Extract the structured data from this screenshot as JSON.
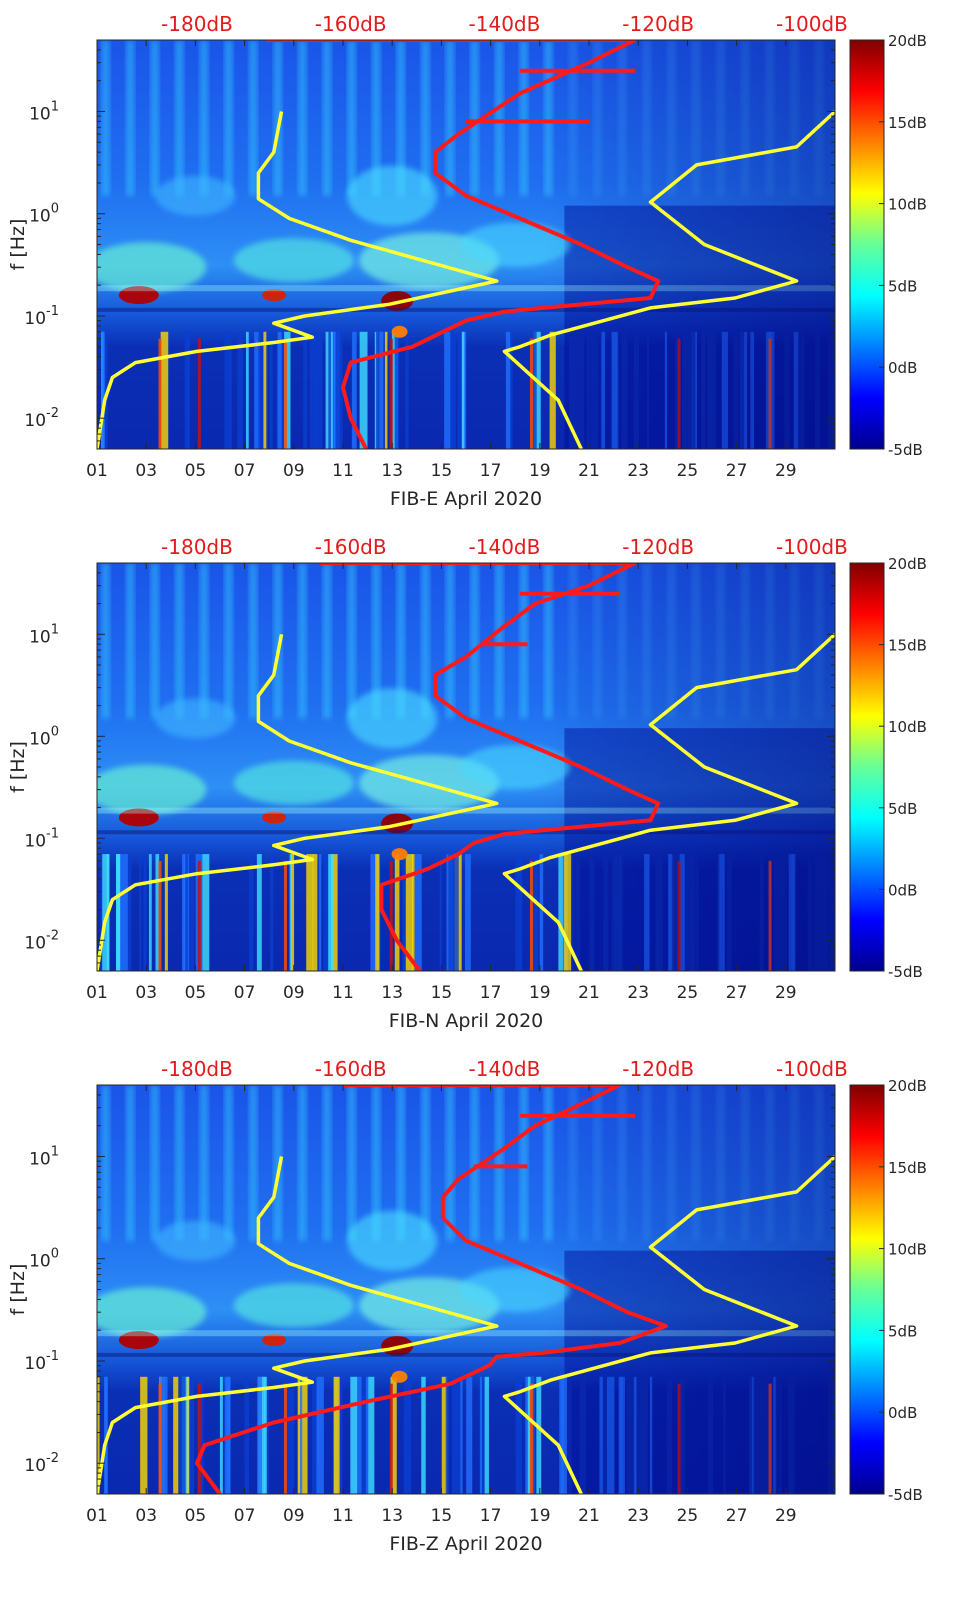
{
  "figure": {
    "colors": {
      "pink_line": "#ff1a1a",
      "yellow_line": "#ffff33",
      "top_axis_text": "#e41a1c"
    }
  },
  "chart_data": [
    {
      "type": "heatmap",
      "xlabel": "FIB-E April 2020",
      "ylabel": "f [Hz]",
      "x_tick_labels": [
        "01",
        "03",
        "05",
        "07",
        "09",
        "11",
        "13",
        "15",
        "17",
        "19",
        "21",
        "23",
        "25",
        "27",
        "29"
      ],
      "x_tick_values": [
        1,
        3,
        5,
        7,
        9,
        11,
        13,
        15,
        17,
        19,
        21,
        23,
        25,
        27,
        29
      ],
      "xlim": [
        1,
        31
      ],
      "y_scale": "log",
      "y_tick_values": [
        0.01,
        0.1,
        1,
        10
      ],
      "y_tick_labels": [
        {
          "base": "10",
          "exp": "-2"
        },
        {
          "base": "10",
          "exp": "-1"
        },
        {
          "base": "10",
          "exp": "0"
        },
        {
          "base": "10",
          "exp": "1"
        }
      ],
      "ylim": [
        0.005,
        50
      ],
      "top_axis_labels": [
        "-180dB",
        "-160dB",
        "-140dB",
        "-120dB",
        "-100dB"
      ],
      "top_axis_values": [
        -180,
        -160,
        -140,
        -120,
        -100
      ],
      "top_axis_lim": [
        -193,
        -97
      ],
      "colorbar": {
        "labels": [
          "20dB",
          "15dB",
          "10dB",
          "5dB",
          "0dB",
          "-5dB"
        ],
        "values": [
          20,
          15,
          10,
          5,
          0,
          -5
        ],
        "range": [
          -5,
          20
        ],
        "colormap": "jet"
      },
      "series": [
        {
          "color": "yellow",
          "points_db_hz": [
            [
              -193,
              0.005
            ],
            [
              -192,
              0.015
            ],
            [
              -191,
              0.025
            ],
            [
              -188,
              0.035
            ],
            [
              -180,
              0.045
            ],
            [
              -170,
              0.055
            ],
            [
              -165,
              0.062
            ],
            [
              -170,
              0.085
            ],
            [
              -166,
              0.1
            ],
            [
              -155,
              0.13
            ],
            [
              -141,
              0.22
            ],
            [
              -160,
              0.55
            ],
            [
              -168,
              0.9
            ],
            [
              -172,
              1.4
            ],
            [
              -172,
              2.5
            ],
            [
              -170,
              4
            ],
            [
              -169,
              10
            ]
          ]
        },
        {
          "color": "yellow",
          "points_db_hz": [
            [
              -97,
              10
            ],
            [
              -102,
              4.5
            ],
            [
              -115,
              3
            ],
            [
              -121,
              1.3
            ],
            [
              -114,
              0.5
            ],
            [
              -102,
              0.22
            ],
            [
              -110,
              0.15
            ],
            [
              -121,
              0.12
            ],
            [
              -134,
              0.065
            ],
            [
              -138,
              0.05
            ],
            [
              -140,
              0.045
            ],
            [
              -133,
              0.015
            ],
            [
              -130,
              0.005
            ]
          ]
        },
        {
          "color": "red",
          "points_db_hz": [
            [
              -158,
              0.005
            ],
            [
              -160,
              0.01
            ],
            [
              -161,
              0.02
            ],
            [
              -160,
              0.035
            ],
            [
              -152,
              0.05
            ],
            [
              -148,
              0.07
            ],
            [
              -145,
              0.09
            ],
            [
              -140,
              0.11
            ],
            [
              -135,
              0.12
            ],
            [
              -121,
              0.15
            ],
            [
              -120,
              0.22
            ],
            [
              -124,
              0.3
            ],
            [
              -130,
              0.5
            ],
            [
              -138,
              0.9
            ],
            [
              -145,
              1.5
            ],
            [
              -149,
              2.5
            ],
            [
              -149,
              4
            ],
            [
              -146,
              6
            ],
            [
              -138,
              15
            ],
            [
              -129,
              30
            ],
            [
              -123,
              50
            ]
          ]
        },
        {
          "color": "red",
          "points_db_hz": [
            [
              -145,
              8
            ],
            [
              -129,
              8
            ]
          ]
        },
        {
          "color": "red",
          "points_db_hz": [
            [
              -138,
              25
            ],
            [
              -123,
              25
            ]
          ]
        },
        {
          "color": "red",
          "points_db_hz": [
            [
              -171,
              50
            ],
            [
              -123,
              50
            ]
          ]
        }
      ]
    },
    {
      "type": "heatmap",
      "xlabel": "FIB-N April 2020",
      "ylabel": "f [Hz]",
      "x_tick_labels": [
        "01",
        "03",
        "05",
        "07",
        "09",
        "11",
        "13",
        "15",
        "17",
        "19",
        "21",
        "23",
        "25",
        "27",
        "29"
      ],
      "x_tick_values": [
        1,
        3,
        5,
        7,
        9,
        11,
        13,
        15,
        17,
        19,
        21,
        23,
        25,
        27,
        29
      ],
      "xlim": [
        1,
        31
      ],
      "y_scale": "log",
      "y_tick_values": [
        0.01,
        0.1,
        1,
        10
      ],
      "y_tick_labels": [
        {
          "base": "10",
          "exp": "-2"
        },
        {
          "base": "10",
          "exp": "-1"
        },
        {
          "base": "10",
          "exp": "0"
        },
        {
          "base": "10",
          "exp": "1"
        }
      ],
      "ylim": [
        0.005,
        50
      ],
      "top_axis_labels": [
        "-180dB",
        "-160dB",
        "-140dB",
        "-120dB",
        "-100dB"
      ],
      "top_axis_values": [
        -180,
        -160,
        -140,
        -120,
        -100
      ],
      "top_axis_lim": [
        -193,
        -97
      ],
      "colorbar": {
        "labels": [
          "20dB",
          "15dB",
          "10dB",
          "5dB",
          "0dB",
          "-5dB"
        ],
        "values": [
          20,
          15,
          10,
          5,
          0,
          -5
        ],
        "range": [
          -5,
          20
        ],
        "colormap": "jet"
      },
      "series": [
        {
          "color": "yellow",
          "points_db_hz": [
            [
              -193,
              0.005
            ],
            [
              -192,
              0.015
            ],
            [
              -191,
              0.025
            ],
            [
              -188,
              0.035
            ],
            [
              -180,
              0.045
            ],
            [
              -170,
              0.055
            ],
            [
              -165,
              0.062
            ],
            [
              -170,
              0.085
            ],
            [
              -166,
              0.1
            ],
            [
              -155,
              0.13
            ],
            [
              -141,
              0.22
            ],
            [
              -160,
              0.55
            ],
            [
              -168,
              0.9
            ],
            [
              -172,
              1.4
            ],
            [
              -172,
              2.5
            ],
            [
              -170,
              4
            ],
            [
              -169,
              10
            ]
          ]
        },
        {
          "color": "yellow",
          "points_db_hz": [
            [
              -97,
              10
            ],
            [
              -102,
              4.5
            ],
            [
              -115,
              3
            ],
            [
              -121,
              1.3
            ],
            [
              -114,
              0.5
            ],
            [
              -102,
              0.22
            ],
            [
              -110,
              0.15
            ],
            [
              -121,
              0.12
            ],
            [
              -134,
              0.065
            ],
            [
              -138,
              0.05
            ],
            [
              -140,
              0.045
            ],
            [
              -133,
              0.015
            ],
            [
              -130,
              0.005
            ]
          ]
        },
        {
          "color": "red",
          "points_db_hz": [
            [
              -151,
              0.005
            ],
            [
              -154,
              0.01
            ],
            [
              -156,
              0.02
            ],
            [
              -156,
              0.035
            ],
            [
              -150,
              0.05
            ],
            [
              -146,
              0.07
            ],
            [
              -144,
              0.09
            ],
            [
              -140,
              0.11
            ],
            [
              -135,
              0.12
            ],
            [
              -121,
              0.15
            ],
            [
              -120,
              0.22
            ],
            [
              -124,
              0.3
            ],
            [
              -130,
              0.5
            ],
            [
              -138,
              0.9
            ],
            [
              -145,
              1.5
            ],
            [
              -149,
              2.5
            ],
            [
              -149,
              4
            ],
            [
              -145,
              6
            ],
            [
              -140,
              12
            ],
            [
              -136,
              20
            ],
            [
              -129,
              30
            ],
            [
              -123,
              50
            ]
          ]
        },
        {
          "color": "red",
          "points_db_hz": [
            [
              -143,
              8
            ],
            [
              -137,
              8
            ]
          ]
        },
        {
          "color": "red",
          "points_db_hz": [
            [
              -138,
              25
            ],
            [
              -125,
              25
            ]
          ]
        },
        {
          "color": "red",
          "points_db_hz": [
            [
              -164,
              50
            ],
            [
              -123,
              50
            ]
          ]
        }
      ]
    },
    {
      "type": "heatmap",
      "xlabel": "FIB-Z April 2020",
      "ylabel": "f [Hz]",
      "x_tick_labels": [
        "01",
        "03",
        "05",
        "07",
        "09",
        "11",
        "13",
        "15",
        "17",
        "19",
        "21",
        "23",
        "25",
        "27",
        "29"
      ],
      "x_tick_values": [
        1,
        3,
        5,
        7,
        9,
        11,
        13,
        15,
        17,
        19,
        21,
        23,
        25,
        27,
        29
      ],
      "xlim": [
        1,
        31
      ],
      "y_scale": "log",
      "y_tick_values": [
        0.01,
        0.1,
        1,
        10
      ],
      "y_tick_labels": [
        {
          "base": "10",
          "exp": "-2"
        },
        {
          "base": "10",
          "exp": "-1"
        },
        {
          "base": "10",
          "exp": "0"
        },
        {
          "base": "10",
          "exp": "1"
        }
      ],
      "ylim": [
        0.005,
        50
      ],
      "top_axis_labels": [
        "-180dB",
        "-160dB",
        "-140dB",
        "-120dB",
        "-100dB"
      ],
      "top_axis_values": [
        -180,
        -160,
        -140,
        -120,
        -100
      ],
      "top_axis_lim": [
        -193,
        -97
      ],
      "colorbar": {
        "labels": [
          "20dB",
          "15dB",
          "10dB",
          "5dB",
          "0dB",
          "-5dB"
        ],
        "values": [
          20,
          15,
          10,
          5,
          0,
          -5
        ],
        "range": [
          -5,
          20
        ],
        "colormap": "jet"
      },
      "series": [
        {
          "color": "yellow",
          "points_db_hz": [
            [
              -193,
              0.005
            ],
            [
              -192,
              0.015
            ],
            [
              -191,
              0.025
            ],
            [
              -188,
              0.035
            ],
            [
              -180,
              0.045
            ],
            [
              -170,
              0.055
            ],
            [
              -165,
              0.062
            ],
            [
              -170,
              0.085
            ],
            [
              -166,
              0.1
            ],
            [
              -155,
              0.13
            ],
            [
              -141,
              0.22
            ],
            [
              -160,
              0.55
            ],
            [
              -168,
              0.9
            ],
            [
              -172,
              1.4
            ],
            [
              -172,
              2.5
            ],
            [
              -170,
              4
            ],
            [
              -169,
              10
            ]
          ]
        },
        {
          "color": "yellow",
          "points_db_hz": [
            [
              -97,
              10
            ],
            [
              -102,
              4.5
            ],
            [
              -115,
              3
            ],
            [
              -121,
              1.3
            ],
            [
              -114,
              0.5
            ],
            [
              -102,
              0.22
            ],
            [
              -110,
              0.15
            ],
            [
              -121,
              0.12
            ],
            [
              -134,
              0.065
            ],
            [
              -138,
              0.05
            ],
            [
              -140,
              0.045
            ],
            [
              -133,
              0.015
            ],
            [
              -130,
              0.005
            ]
          ]
        },
        {
          "color": "red",
          "points_db_hz": [
            [
              -177,
              0.005
            ],
            [
              -180,
              0.01
            ],
            [
              -179,
              0.015
            ],
            [
              -170,
              0.025
            ],
            [
              -158,
              0.04
            ],
            [
              -147,
              0.06
            ],
            [
              -142,
              0.09
            ],
            [
              -141,
              0.11
            ],
            [
              -135,
              0.12
            ],
            [
              -125,
              0.15
            ],
            [
              -119,
              0.22
            ],
            [
              -124,
              0.3
            ],
            [
              -130,
              0.5
            ],
            [
              -138,
              0.9
            ],
            [
              -145,
              1.5
            ],
            [
              -148,
              2.5
            ],
            [
              -148,
              4
            ],
            [
              -146,
              6
            ],
            [
              -140,
              12
            ],
            [
              -136,
              20
            ],
            [
              -131,
              30
            ],
            [
              -125,
              50
            ]
          ]
        },
        {
          "color": "red",
          "points_db_hz": [
            [
              -144,
              8
            ],
            [
              -137,
              8
            ]
          ]
        },
        {
          "color": "red",
          "points_db_hz": [
            [
              -138,
              25
            ],
            [
              -123,
              25
            ]
          ]
        },
        {
          "color": "red",
          "points_db_hz": [
            [
              -161,
              50
            ],
            [
              -125,
              50
            ]
          ]
        }
      ]
    }
  ]
}
